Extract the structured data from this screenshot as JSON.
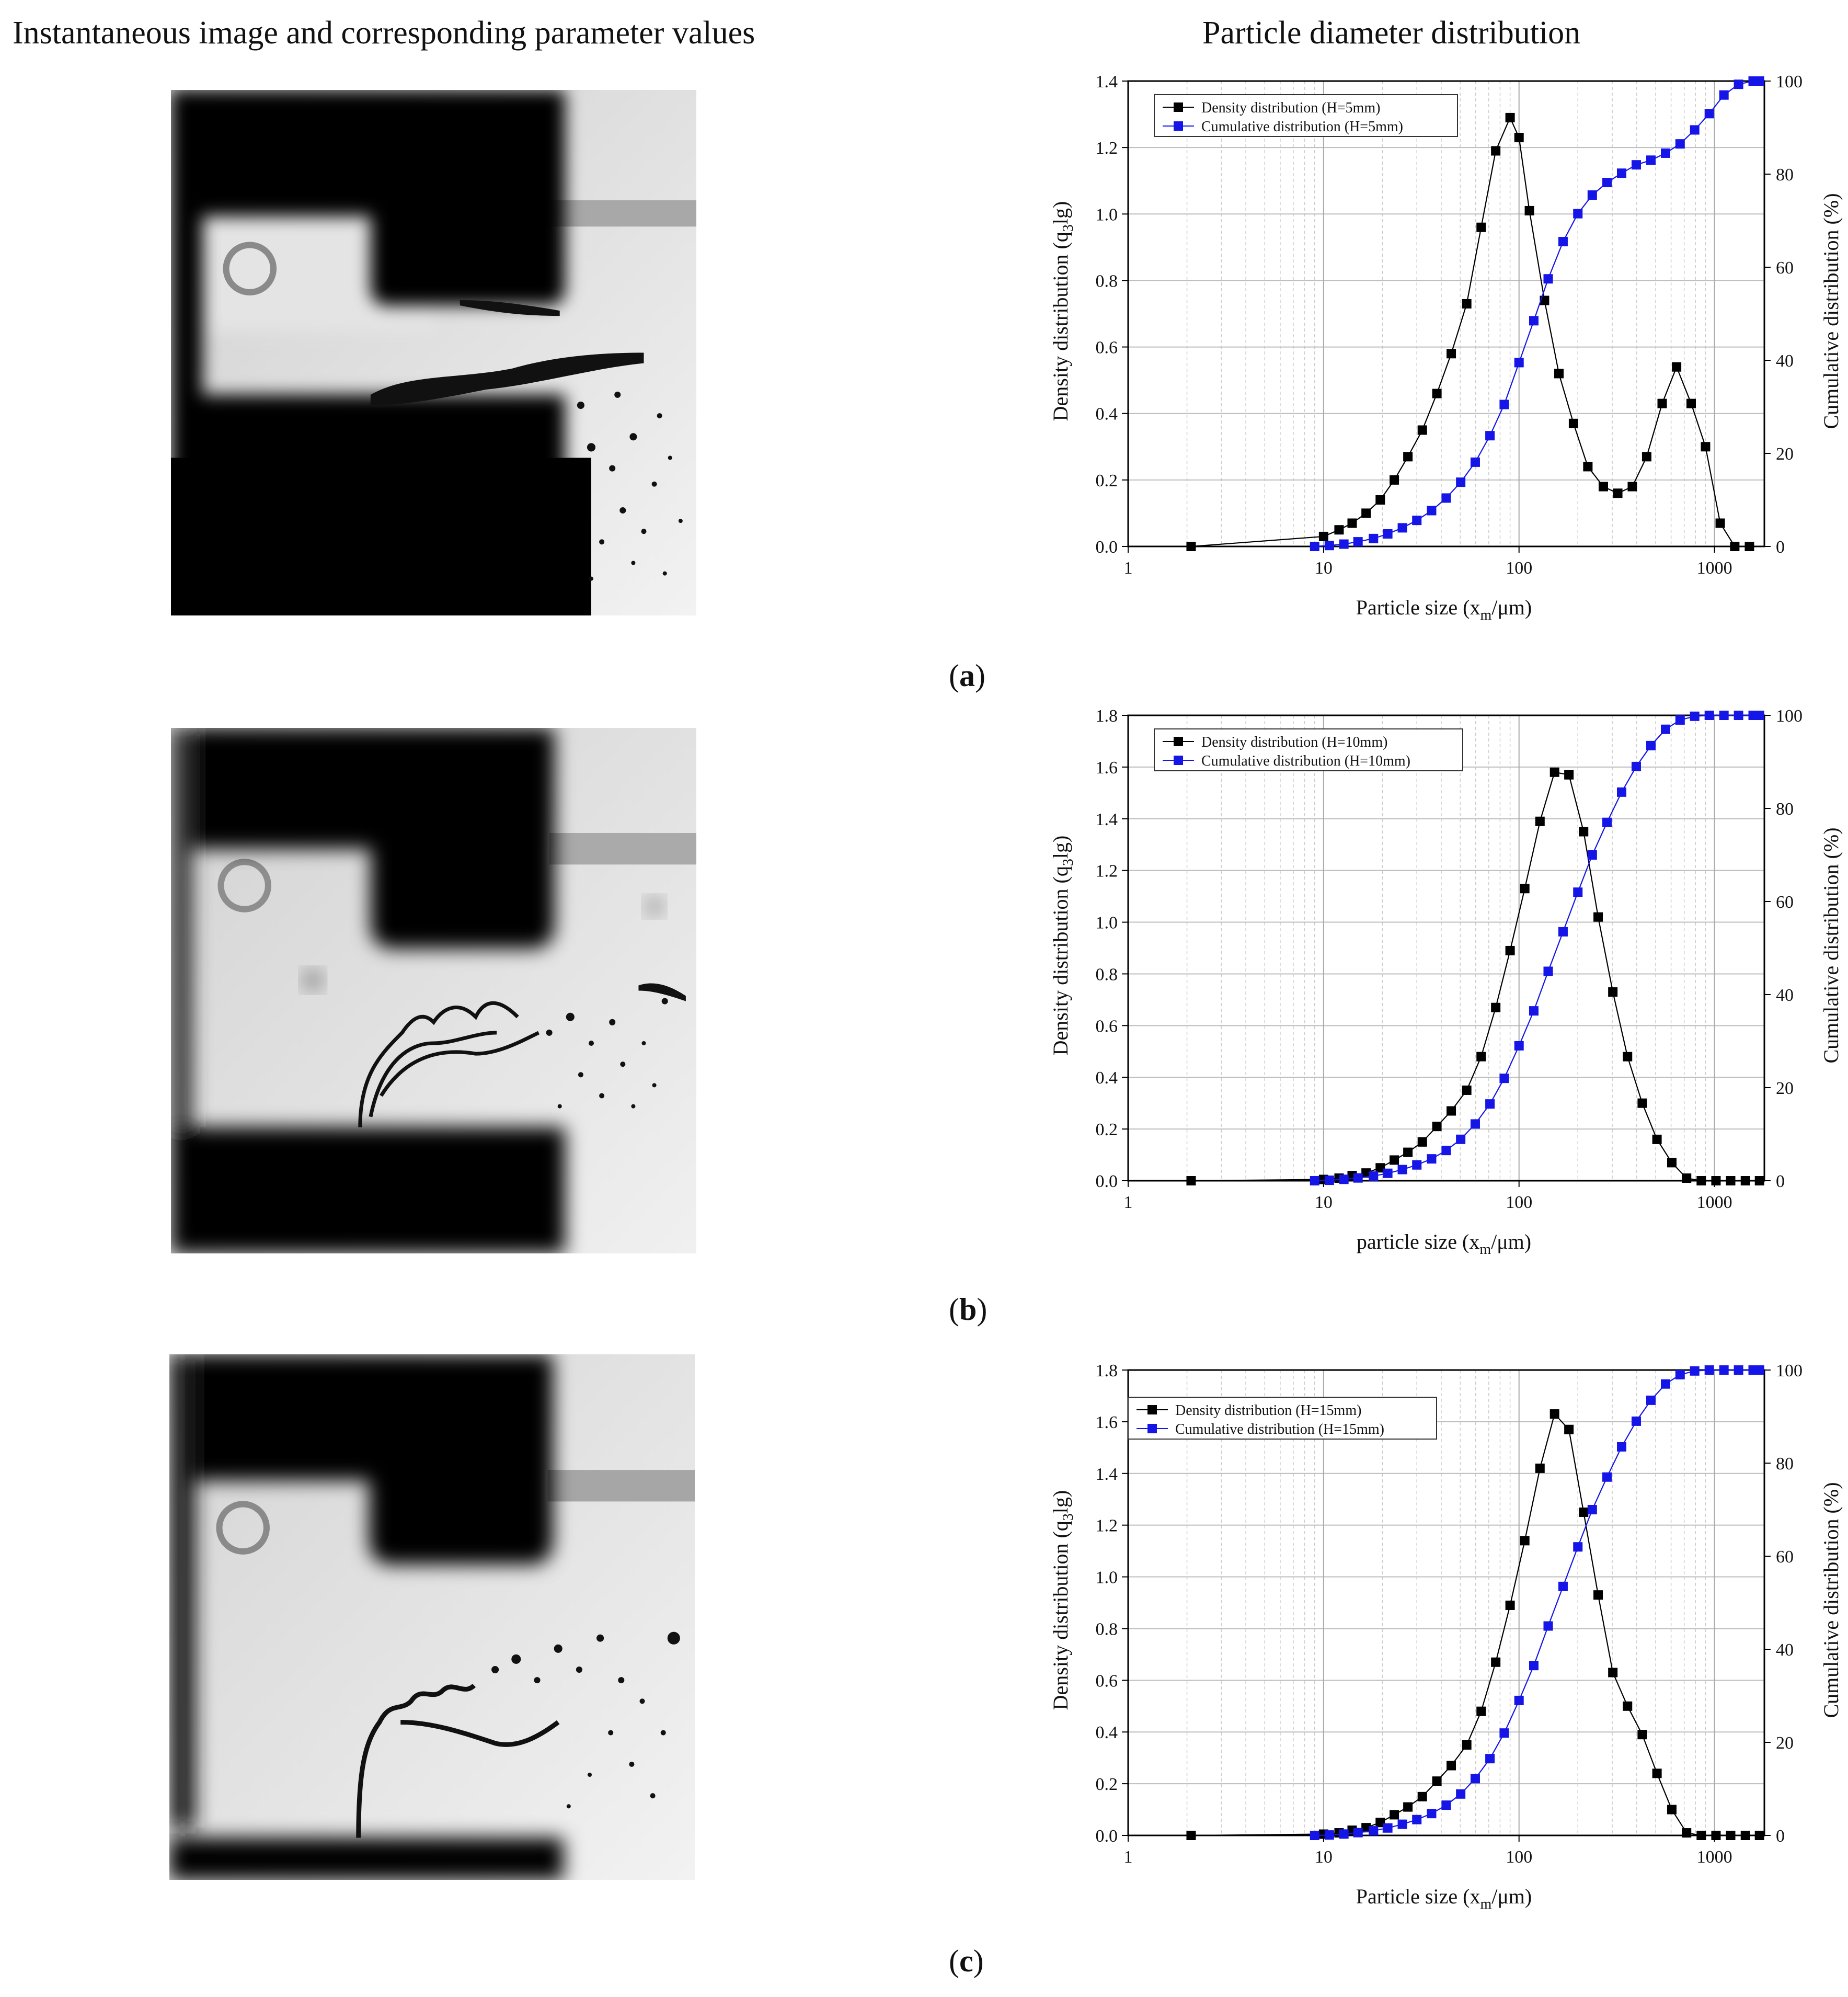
{
  "headers": {
    "left": "Instantaneous image and corresponding parameter values",
    "right": "Particle diameter distribution"
  },
  "panels": [
    {
      "label": "a"
    },
    {
      "label": "b"
    },
    {
      "label": "c"
    }
  ],
  "chart_data": [
    {
      "type": "line",
      "xscale": "log",
      "xlim": [
        1,
        1800
      ],
      "xticks": [
        "1",
        "10",
        "100",
        "1000"
      ],
      "ylim": [
        0,
        1.4
      ],
      "yticks": [
        "0.0",
        "0.2",
        "0.4",
        "0.6",
        "0.8",
        "1.0",
        "1.2",
        "1.4"
      ],
      "y2lim": [
        0,
        100
      ],
      "y2ticks": [
        "0",
        "20",
        "40",
        "60",
        "80",
        "100"
      ],
      "xlabel_main": "Particle size (x",
      "xlabel_sub": "m",
      "xlabel_end": "/μm)",
      "ylabel_main": "Density distribution (q",
      "ylabel_sub": "3",
      "ylabel_end": "lg)",
      "y2label": "Cumulative distribution (%)",
      "grid": true,
      "legend_position": "top-left",
      "series": [
        {
          "name": "Density distribution (H=5mm)",
          "axis": "left",
          "color": "#000000",
          "marker": "square",
          "x": [
            2.1,
            10,
            12,
            14,
            16.5,
            19.5,
            23,
            27,
            32,
            38,
            45,
            54,
            64,
            76,
            90,
            100,
            113,
            135,
            160,
            190,
            225,
            270,
            320,
            380,
            450,
            540,
            640,
            760,
            900,
            1070,
            1270,
            1510
          ],
          "y": [
            0.0,
            0.03,
            0.05,
            0.07,
            0.1,
            0.14,
            0.2,
            0.27,
            0.35,
            0.46,
            0.58,
            0.73,
            0.96,
            1.19,
            1.29,
            1.23,
            1.01,
            0.74,
            0.52,
            0.37,
            0.24,
            0.18,
            0.16,
            0.18,
            0.27,
            0.43,
            0.54,
            0.43,
            0.3,
            0.07,
            0.0,
            0.0
          ]
        },
        {
          "name": "Cumulative distribution (H=5mm)",
          "axis": "right",
          "color": "#1515e8",
          "marker": "square",
          "x": [
            9,
            10.7,
            12.7,
            15,
            18,
            21.3,
            25.3,
            30,
            35.7,
            42.4,
            50.3,
            59.7,
            71,
            84,
            100,
            119,
            141,
            168,
            200,
            237,
            282,
            335,
            398,
            473,
            562,
            667,
            792,
            941,
            1118,
            1328,
            1577,
            1700
          ],
          "y": [
            0,
            0.2,
            0.5,
            1,
            1.7,
            2.7,
            4,
            5.6,
            7.7,
            10.4,
            13.8,
            18.1,
            23.8,
            30.5,
            39.5,
            48.5,
            57.5,
            65.5,
            71.5,
            75.5,
            78.2,
            80.2,
            82,
            83,
            84.5,
            86.5,
            89.5,
            93,
            97,
            99.3,
            100,
            100
          ]
        }
      ]
    },
    {
      "type": "line",
      "xscale": "log",
      "xlim": [
        1,
        1800
      ],
      "xticks": [
        "1",
        "10",
        "100",
        "1000"
      ],
      "ylim": [
        0,
        1.8
      ],
      "yticks": [
        "0.0",
        "0.2",
        "0.4",
        "0.6",
        "0.8",
        "1.0",
        "1.2",
        "1.4",
        "1.6",
        "1.8"
      ],
      "y2lim": [
        0,
        100
      ],
      "y2ticks": [
        "0",
        "20",
        "40",
        "60",
        "80",
        "100"
      ],
      "xlabel_main": "particle size (x",
      "xlabel_sub": "m",
      "xlabel_end": "/μm)",
      "ylabel_main": "Density distribution (q",
      "ylabel_sub": "3",
      "ylabel_end": "lg)",
      "y2label": "Cumulative distribution (%)",
      "grid": true,
      "legend_position": "top-left",
      "series": [
        {
          "name": "Density distribution (H=10mm)",
          "axis": "left",
          "color": "#000000",
          "marker": "square",
          "x": [
            2.1,
            10,
            12,
            14,
            16.5,
            19.5,
            23,
            27,
            32,
            38,
            45,
            54,
            64,
            76,
            90,
            107,
            128,
            152,
            180,
            214,
            254,
            302,
            359,
            427,
            508,
            605,
            720,
            856,
            1018,
            1210,
            1440,
            1700
          ],
          "y": [
            0.0,
            0.005,
            0.01,
            0.02,
            0.03,
            0.05,
            0.08,
            0.11,
            0.15,
            0.21,
            0.27,
            0.35,
            0.48,
            0.67,
            0.89,
            1.13,
            1.39,
            1.58,
            1.57,
            1.35,
            1.02,
            0.73,
            0.48,
            0.3,
            0.16,
            0.07,
            0.01,
            0.0,
            0.0,
            0.0,
            0.0,
            0.0
          ]
        },
        {
          "name": "Cumulative distribution (H=10mm)",
          "axis": "right",
          "color": "#1515e8",
          "marker": "square",
          "x": [
            9,
            10.7,
            12.7,
            15,
            18,
            21.3,
            25.3,
            30,
            35.7,
            42.4,
            50.3,
            59.7,
            71,
            84,
            100,
            119,
            141,
            168,
            200,
            237,
            282,
            335,
            398,
            473,
            562,
            667,
            792,
            941,
            1118,
            1328,
            1577,
            1700
          ],
          "y": [
            0,
            0.1,
            0.3,
            0.6,
            1,
            1.6,
            2.4,
            3.4,
            4.7,
            6.5,
            8.9,
            12.2,
            16.5,
            22,
            29,
            36.5,
            45,
            53.5,
            62,
            70,
            77,
            83.5,
            89,
            93.5,
            97,
            99,
            99.8,
            100,
            100,
            100,
            100,
            100
          ]
        }
      ]
    },
    {
      "type": "line",
      "xscale": "log",
      "xlim": [
        1,
        1800
      ],
      "xticks": [
        "1",
        "10",
        "100",
        "1000"
      ],
      "ylim": [
        0,
        1.8
      ],
      "yticks": [
        "0.0",
        "0.2",
        "0.4",
        "0.6",
        "0.8",
        "1.0",
        "1.2",
        "1.4",
        "1.6",
        "1.8"
      ],
      "y2lim": [
        0,
        100
      ],
      "y2ticks": [
        "0",
        "20",
        "40",
        "60",
        "80",
        "100"
      ],
      "xlabel_main": "Particle size (x",
      "xlabel_sub": "m",
      "xlabel_end": "/μm)",
      "ylabel_main": "Density distribution (q",
      "ylabel_sub": "3",
      "ylabel_end": "lg)",
      "y2label": "Cumulative distribution (%)",
      "grid": true,
      "legend_position": "top-left",
      "series": [
        {
          "name": "Density distribution (H=15mm)",
          "axis": "left",
          "color": "#000000",
          "marker": "square",
          "x": [
            2.1,
            10,
            12,
            14,
            16.5,
            19.5,
            23,
            27,
            32,
            38,
            45,
            54,
            64,
            76,
            90,
            107,
            128,
            152,
            180,
            214,
            254,
            302,
            359,
            427,
            508,
            605,
            720,
            856,
            1018,
            1210,
            1440,
            1700
          ],
          "y": [
            0.0,
            0.005,
            0.01,
            0.02,
            0.03,
            0.05,
            0.08,
            0.11,
            0.15,
            0.21,
            0.27,
            0.35,
            0.48,
            0.67,
            0.89,
            1.14,
            1.42,
            1.63,
            1.57,
            1.25,
            0.93,
            0.63,
            0.5,
            0.39,
            0.24,
            0.1,
            0.01,
            0.0,
            0.0,
            0.0,
            0.0,
            0.0
          ]
        },
        {
          "name": "Cumulative distribution (H=15mm)",
          "axis": "right",
          "color": "#1515e8",
          "marker": "square",
          "x": [
            9,
            10.7,
            12.7,
            15,
            18,
            21.3,
            25.3,
            30,
            35.7,
            42.4,
            50.3,
            59.7,
            71,
            84,
            100,
            119,
            141,
            168,
            200,
            237,
            282,
            335,
            398,
            473,
            562,
            667,
            792,
            941,
            1118,
            1328,
            1577,
            1700
          ],
          "y": [
            0,
            0.1,
            0.3,
            0.6,
            1,
            1.6,
            2.4,
            3.4,
            4.7,
            6.5,
            8.9,
            12.2,
            16.5,
            22,
            29,
            36.5,
            45,
            53.5,
            62,
            70,
            77,
            83.5,
            89,
            93.5,
            97,
            99,
            99.8,
            100,
            100,
            100,
            100,
            100
          ]
        }
      ]
    }
  ]
}
